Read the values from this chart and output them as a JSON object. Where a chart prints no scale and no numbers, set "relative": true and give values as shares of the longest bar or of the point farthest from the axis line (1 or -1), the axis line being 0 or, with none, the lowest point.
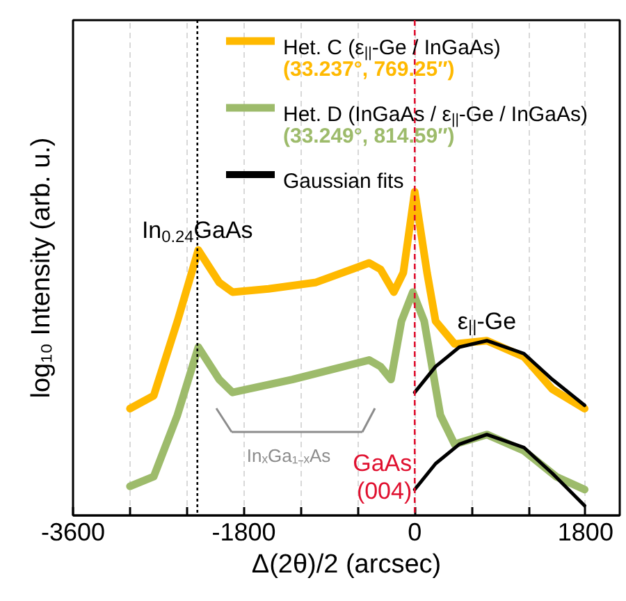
{
  "chart_data": {
    "type": "line",
    "relative": true,
    "xlabel": "Δ(2θ)/2 (arcsec)",
    "ylabel": "log₁₀ Intensity (arb. u.)",
    "xlim": [
      -3600,
      2160
    ],
    "xticks": [
      -3600,
      {
        "value": -3000,
        "label": null
      },
      {
        "value": -2400,
        "label": null
      },
      -1800,
      {
        "value": -1200,
        "label": null
      },
      {
        "value": -600,
        "label": null
      },
      0,
      {
        "value": 600,
        "label": null
      },
      {
        "value": 1200,
        "label": null
      },
      1800
    ],
    "grid": "x",
    "legend": "top right",
    "line_style": "solid",
    "series": [
      {
        "name": "Het. C (ε$_{||}$-Ge / InGaAs)",
        "color": "#ffb900",
        "x": [
          -3000,
          -2750,
          -2500,
          -2280,
          -2060,
          -1920,
          -1540,
          -1040,
          -480,
          -360,
          -220,
          -120,
          0,
          130,
          220,
          420,
          760,
          1150,
          1450,
          1790
        ],
        "values": [
          0.33,
          0.37,
          0.6,
          0.82,
          0.72,
          0.69,
          0.7,
          0.72,
          0.78,
          0.76,
          0.69,
          0.75,
          1.0,
          0.75,
          0.6,
          0.53,
          0.54,
          0.49,
          0.39,
          0.33
        ]
      },
      {
        "name": "Het. D (InGaAs / ε$_{||}$-Ge / InGaAs)",
        "color": "#9dbb6b",
        "x": [
          -3000,
          -2750,
          -2500,
          -2280,
          -2060,
          -1920,
          -1290,
          -480,
          -360,
          -250,
          -140,
          -20,
          100,
          270,
          420,
          760,
          1150,
          1490,
          1790
        ],
        "values": [
          0.09,
          0.12,
          0.31,
          0.52,
          0.42,
          0.38,
          0.42,
          0.48,
          0.46,
          0.42,
          0.6,
          0.69,
          0.6,
          0.31,
          0.22,
          0.25,
          0.2,
          0.12,
          0.08
        ]
      },
      {
        "name": "Gaussian fits",
        "color": "#000000",
        "x": [
          0,
          220,
          470,
          760,
          1150,
          1450,
          1790
        ],
        "values": [
          0.38,
          0.46,
          0.52,
          0.54,
          0.5,
          0.42,
          0.34
        ]
      },
      {
        "color": "#000000",
        "x": [
          0,
          220,
          470,
          760,
          1150,
          1450,
          1790
        ],
        "values": [
          0.08,
          0.16,
          0.22,
          0.25,
          0.21,
          0.13,
          0.03
        ]
      }
    ],
    "ref_lines": [
      {
        "axis": "x",
        "value": -2290,
        "label": null,
        "color": "#000000",
        "line_style": "dotted"
      },
      {
        "axis": "x",
        "value": 0,
        "label": "GaAs\n(004)",
        "color": "#e0102f",
        "line_style": "dashed"
      }
    ],
    "annotations": [
      "(33.237°, 769.25″)",
      "(33.249°, 814.59″)",
      "InₓGa₁₋ₓAs",
      {
        "text": "In$_{0.24}$GaAs",
        "x": -2290,
        "y": 0.82
      },
      {
        "text": "ε$_{||}$-Ge",
        "x": 760,
        "y": 0.54
      }
    ]
  }
}
